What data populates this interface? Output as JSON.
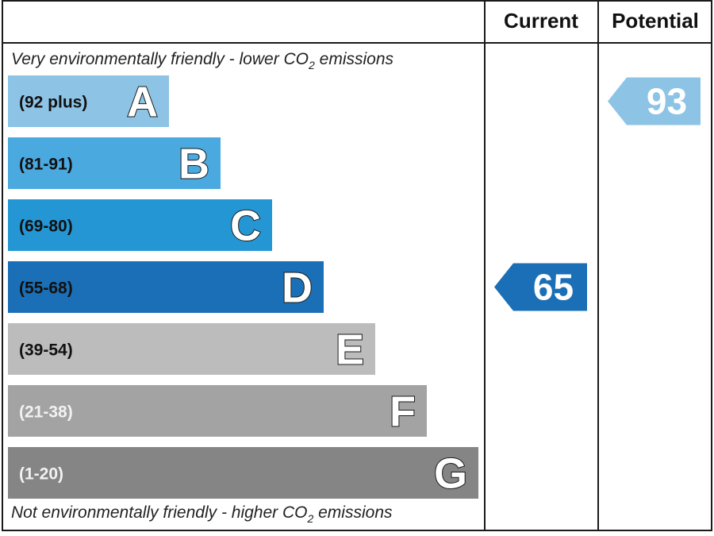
{
  "chart_data": {
    "type": "bar",
    "columns": {
      "current_label": "Current",
      "potential_label": "Potential"
    },
    "top_note": "Very environmentally friendly - lower CO",
    "bottom_note": "Not environmentally friendly - higher CO",
    "note_subscript": "2",
    "note_suffix": " emissions",
    "bands": [
      {
        "letter": "A",
        "range": "(92 plus)",
        "color": "#8dc4e6",
        "range_color": "#111111"
      },
      {
        "letter": "B",
        "range": "(81-91)",
        "color": "#4aa9de",
        "range_color": "#111111"
      },
      {
        "letter": "C",
        "range": "(69-80)",
        "color": "#2596d4",
        "range_color": "#111111"
      },
      {
        "letter": "D",
        "range": "(55-68)",
        "color": "#1a6fb6",
        "range_color": "#111111"
      },
      {
        "letter": "E",
        "range": "(39-54)",
        "color": "#bcbcbc",
        "range_color": "#111111"
      },
      {
        "letter": "F",
        "range": "(21-38)",
        "color": "#a3a3a3",
        "range_color": "#f2f2f2"
      },
      {
        "letter": "G",
        "range": "(1-20)",
        "color": "#858585",
        "range_color": "#f2f2f2"
      }
    ],
    "current": {
      "value": 65,
      "band": "D",
      "color": "#1a6fb6"
    },
    "potential": {
      "value": 93,
      "band": "A",
      "color": "#8dc4e6"
    }
  }
}
